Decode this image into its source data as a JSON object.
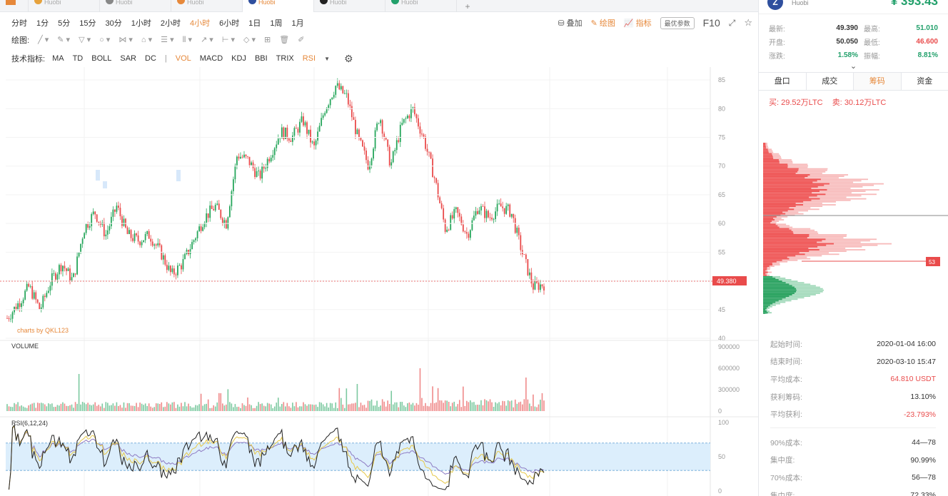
{
  "tabs": [
    {
      "label": "Huobi",
      "color": "#e6a23c",
      "active": false
    },
    {
      "label": "Huobi",
      "color": "#888888",
      "active": false
    },
    {
      "label": "Huobi",
      "color": "#e6883a",
      "active": false
    },
    {
      "label": "Huobi",
      "color": "#2f4f9e",
      "active": true
    },
    {
      "label": "Huobi",
      "color": "#222222",
      "active": false
    },
    {
      "label": "Huobi",
      "color": "#22a06b",
      "active": false
    }
  ],
  "tab_add_label": "+",
  "intervals": [
    "分时",
    "1分",
    "5分",
    "15分",
    "30分",
    "1小时",
    "2小时",
    "4小时",
    "6小时",
    "1日",
    "1周",
    "1月"
  ],
  "active_interval": "4小时",
  "toolbar_right": {
    "overlay": "叠加",
    "draw": "绘图",
    "indicators": "指标",
    "optimize": "最优参数",
    "f10": "F10"
  },
  "draw_label": "绘图:",
  "draw_tools": [
    "╱ ▾",
    "✎ ▾",
    "▽ ▾",
    "○ ▾",
    "⋈ ▾",
    "⌂ ▾",
    "☰ ▾",
    "⦀ ▾",
    "↗ ▾",
    "⊢ ▾",
    "◇ ▾",
    "⊞",
    "🗑",
    "✐"
  ],
  "indicator_label": "技术指标:",
  "indicators": [
    "MA",
    "TD",
    "BOLL",
    "SAR",
    "DC"
  ],
  "indicators2": [
    "VOL",
    "MACD",
    "KDJ",
    "BBI",
    "TRIX",
    "RSI"
  ],
  "active_indicators": [
    "VOL",
    "RSI"
  ],
  "chart": {
    "watermark": "charts by QKL123",
    "price_ticks": [
      "85",
      "80",
      "75",
      "70",
      "65",
      "60",
      "55",
      "50",
      "45",
      "40"
    ],
    "current_price_tag": "49.380",
    "volume_label": "VOLUME",
    "volume_ticks": [
      "900000",
      "600000",
      "300000",
      "0"
    ],
    "rsi_label": "RSI(6,12,24)",
    "rsi_ticks": [
      "100",
      "50",
      "0"
    ]
  },
  "chart_data": {
    "type": "candlestick",
    "y_range": [
      40,
      86
    ],
    "price_path": [
      43.5,
      46,
      49,
      45,
      50,
      53,
      50,
      59,
      62,
      58,
      63,
      58,
      57,
      58,
      55,
      51,
      53,
      57,
      61,
      63,
      60,
      72,
      71,
      68,
      72,
      76,
      75,
      78,
      73,
      80,
      84,
      82,
      75,
      70,
      79,
      70,
      77,
      80,
      75,
      68,
      59,
      62,
      58,
      63,
      61,
      63,
      62,
      55,
      49,
      49.4
    ],
    "volume_range": [
      0,
      900000
    ],
    "rsi_range": [
      0,
      100
    ],
    "rsi_band": [
      30,
      70
    ]
  },
  "side": {
    "coin_letter": "Z",
    "exchange": "Huobi",
    "price": "¥ 393.43",
    "stats": [
      {
        "k": "最新:",
        "v": "49.390",
        "k2": "最高:",
        "v2": "51.010",
        "c2": "green"
      },
      {
        "k": "开盘:",
        "v": "50.050",
        "k2": "最低:",
        "v2": "46.600",
        "c2": "red"
      },
      {
        "k": "涨跌:",
        "v": "1.58%",
        "k2": "振幅:",
        "v2": "8.81%",
        "c": "green",
        "c2": "green"
      }
    ],
    "tabs": [
      "盘口",
      "成交",
      "筹码",
      "资金"
    ],
    "active_tab": "筹码",
    "buy_label": "买:",
    "buy_value": "29.52万LTC",
    "sell_label": "卖:",
    "sell_value": "30.12万LTC",
    "marker_label": "53",
    "info": [
      {
        "k": "起始时间:",
        "v": "2020-01-04 16:00"
      },
      {
        "k": "结束时间:",
        "v": "2020-03-10 15:47"
      },
      {
        "k": "平均成本:",
        "v": "64.810 USDT",
        "c": "red"
      },
      {
        "k": "获利筹码:",
        "v": "13.10%"
      },
      {
        "k": "平均获利:",
        "v": "-23.793%",
        "c": "red"
      }
    ],
    "info2": [
      {
        "k": "90%成本:",
        "v": "44—78"
      },
      {
        "k": "集中度:",
        "v": "90.99%"
      },
      {
        "k": "70%成本:",
        "v": "56—78"
      },
      {
        "k": "集中度:",
        "v": "72.33%"
      }
    ]
  }
}
